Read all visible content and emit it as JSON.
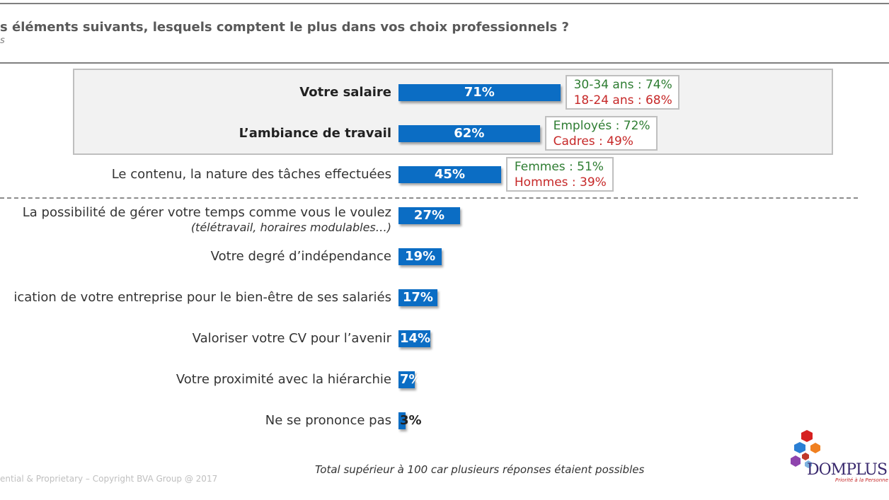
{
  "header": {
    "title": "s éléments suivants, lesquels comptent le plus dans vos choix professionnels ?",
    "subtitle": "s"
  },
  "chart_data": {
    "type": "bar",
    "orientation": "horizontal",
    "categories": [
      "Votre salaire",
      "L’ambiance de travail",
      "Le contenu, la nature des tâches effectuées",
      "La possibilité de gérer votre temps comme vous le voulez",
      "Votre degré d’indépendance",
      "ication de votre entreprise pour le bien-être de ses salariés",
      "Valoriser votre CV pour l’avenir",
      "Votre proximité avec la hiérarchie",
      "Ne se prononce pas"
    ],
    "category_notes": [
      "",
      "",
      "",
      "(télétravail, horaires modulables…)",
      "",
      "",
      "",
      "",
      ""
    ],
    "values": [
      71,
      62,
      45,
      27,
      19,
      17,
      14,
      7,
      3
    ],
    "value_labels": [
      "71%",
      "62%",
      "45%",
      "27%",
      "19%",
      "17%",
      "14%",
      "7%",
      "3%"
    ],
    "bar_color": "#0b6dc4",
    "xlim": [
      0,
      100
    ],
    "highlighted_categories": [
      "Votre salaire",
      "L’ambiance de travail"
    ],
    "annotations": [
      {
        "category": "Votre salaire",
        "high": "30-34 ans : 74%",
        "low": "18-24 ans : 68%"
      },
      {
        "category": "L’ambiance de travail",
        "high": "Employés : 72%",
        "low": "Cadres : 49%"
      },
      {
        "category": "Le contenu, la nature des tâches effectuées",
        "high": "Femmes : 51%",
        "low": "Hommes : 39%"
      }
    ],
    "high_color": "#2e7d32",
    "low_color": "#c62828"
  },
  "footer": {
    "note": "Total supérieur à 100 car plusieurs réponses étaient possibles",
    "copyright": "ential & Proprietary – Copyright BVA Group @ 2017",
    "logo_word": "DOMPLUS",
    "logo_tagline": "Priorité à la Personne"
  }
}
